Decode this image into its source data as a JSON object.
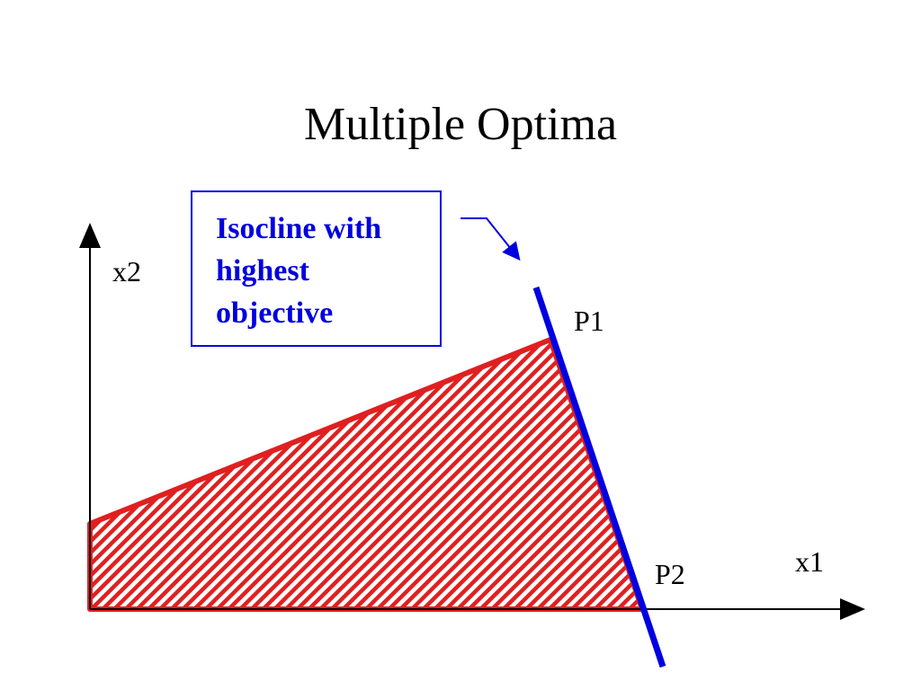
{
  "title": "Multiple Optima",
  "callout": {
    "lines": [
      "Isocline with",
      "highest",
      "objective"
    ]
  },
  "axes": {
    "x_label": "x1",
    "y_label": "x2"
  },
  "points": [
    {
      "label": "P1"
    },
    {
      "label": "P2"
    }
  ]
}
